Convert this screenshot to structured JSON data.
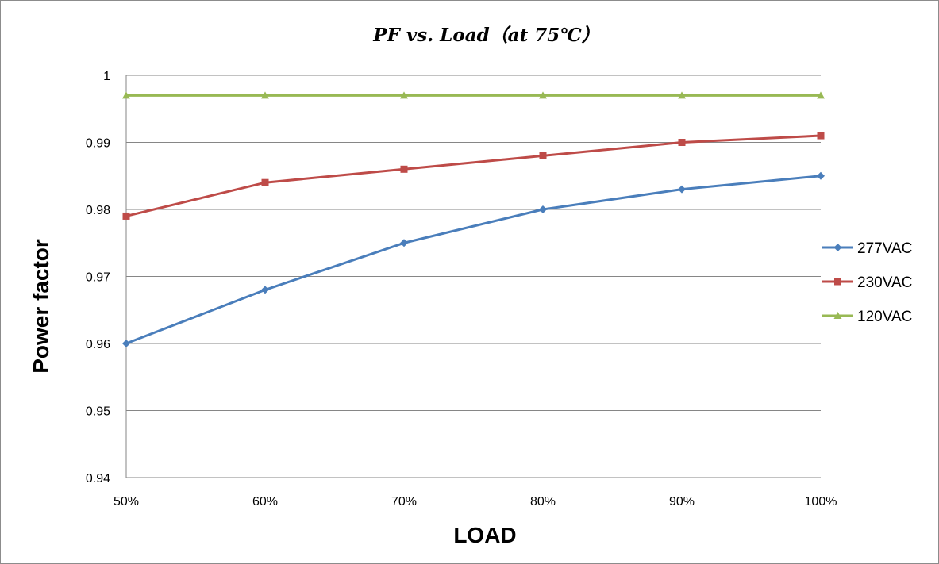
{
  "chart_data": {
    "type": "line",
    "title": "PF vs. Load（at 75℃）",
    "xlabel": "LOAD",
    "ylabel": "Power factor",
    "categories": [
      "50%",
      "60%",
      "70%",
      "80%",
      "90%",
      "100%"
    ],
    "ylim": [
      0.94,
      1
    ],
    "yticks": [
      0.94,
      0.95,
      0.96,
      0.97,
      0.98,
      0.99,
      1
    ],
    "ytick_labels": [
      "0.94",
      "0.95",
      "0.96",
      "0.97",
      "0.98",
      "0.99",
      "1"
    ],
    "grid": "horizontal",
    "legend_position": "right",
    "series": [
      {
        "name": "277VAC",
        "color": "#4a7ebb",
        "marker": "diamond",
        "values": [
          0.96,
          0.968,
          0.975,
          0.98,
          0.983,
          0.985
        ]
      },
      {
        "name": "230VAC",
        "color": "#be4b48",
        "marker": "square",
        "values": [
          0.979,
          0.984,
          0.986,
          0.988,
          0.99,
          0.991
        ]
      },
      {
        "name": "120VAC",
        "color": "#98b954",
        "marker": "triangle",
        "values": [
          0.997,
          0.997,
          0.997,
          0.997,
          0.997,
          0.997
        ]
      }
    ]
  }
}
